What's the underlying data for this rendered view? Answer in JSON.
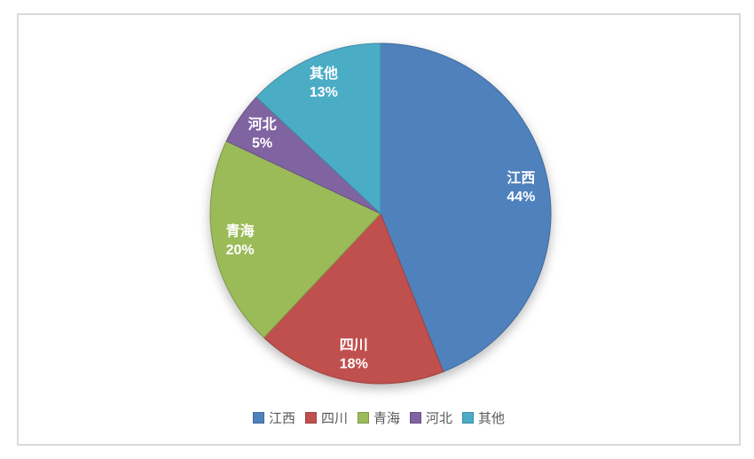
{
  "chart_data": {
    "type": "pie",
    "title": "",
    "start_angle_deg": 0,
    "direction": "clockwise",
    "legend_position": "bottom",
    "value_suffix": "%",
    "slices": [
      {
        "label": "江西",
        "value": 44,
        "color": "#4F81BD"
      },
      {
        "label": "四川",
        "value": 18,
        "color": "#C0504D"
      },
      {
        "label": "青海",
        "value": 20,
        "color": "#9BBB59"
      },
      {
        "label": "河北",
        "value": 5,
        "color": "#8064A2"
      },
      {
        "label": "其他",
        "value": 13,
        "color": "#4BACC6"
      }
    ],
    "slice_label_texts": [
      "江西 44%",
      "四川 18%",
      "青海 20%",
      "河北 5%",
      "其他 13%"
    ],
    "legend_labels": [
      "江西",
      "四川",
      "青海",
      "河北",
      "其他"
    ]
  },
  "frame": {
    "border_color": "#D9D9D9",
    "background": "#FFFFFF"
  }
}
